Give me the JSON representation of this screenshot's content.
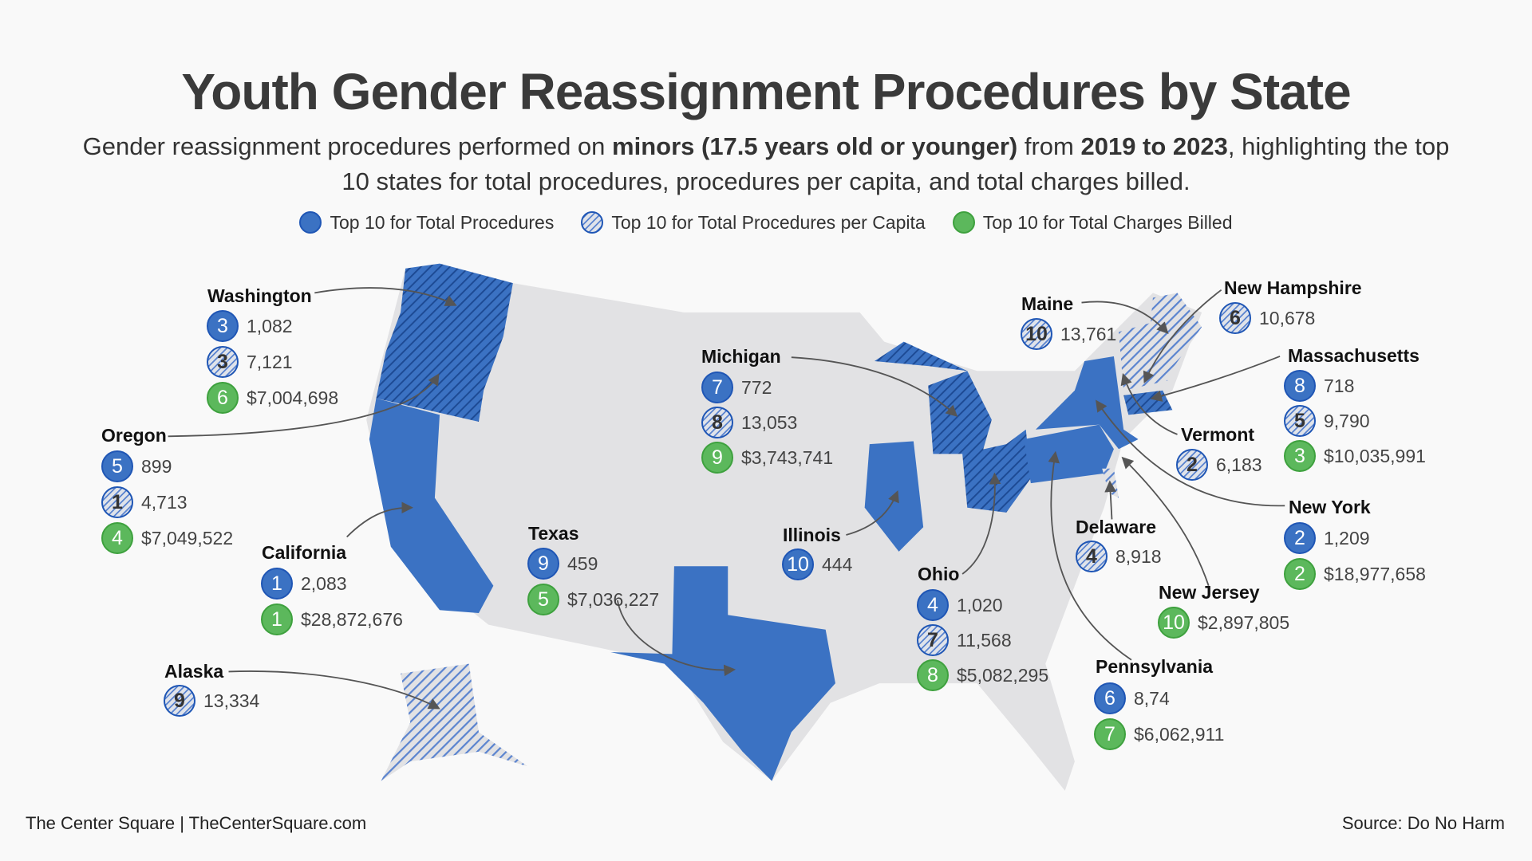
{
  "title": "Youth Gender Reassignment Procedures by State",
  "subtitle": {
    "p1": "Gender reassignment procedures performed on ",
    "b1": "minors (17.5 years old or younger)",
    "p2": " from ",
    "b2": "2019 to 2023",
    "p3": ", highlighting the top 10 states for total procedures, procedures per capita, and total charges billed."
  },
  "legend": [
    {
      "type": "blue",
      "label": "Top 10 for Total Procedures"
    },
    {
      "type": "hatch",
      "label": "Top 10 for Total Procedures per Capita"
    },
    {
      "type": "green",
      "label": "Top 10 for Total Charges Billed"
    }
  ],
  "colors": {
    "procedures": "#3b72c3",
    "per_capita_hatch": "#5b84cf",
    "charges": "#5cb85c",
    "map_base": "#e2e2e4"
  },
  "states": [
    {
      "name": "Washington",
      "rows": [
        {
          "type": "blue",
          "rank": "3",
          "value": "1,082"
        },
        {
          "type": "hatch",
          "rank": "3",
          "value": "7,121"
        },
        {
          "type": "green",
          "rank": "6",
          "value": "$7,004,698"
        }
      ]
    },
    {
      "name": "Oregon",
      "rows": [
        {
          "type": "blue",
          "rank": "5",
          "value": "899"
        },
        {
          "type": "hatch",
          "rank": "1",
          "value": "4,713"
        },
        {
          "type": "green",
          "rank": "4",
          "value": "$7,049,522"
        }
      ]
    },
    {
      "name": "California",
      "rows": [
        {
          "type": "blue",
          "rank": "1",
          "value": "2,083"
        },
        {
          "type": "green",
          "rank": "1",
          "value": "$28,872,676"
        }
      ]
    },
    {
      "name": "Alaska",
      "rows": [
        {
          "type": "hatch",
          "rank": "9",
          "value": "13,334"
        }
      ]
    },
    {
      "name": "Texas",
      "rows": [
        {
          "type": "blue",
          "rank": "9",
          "value": "459"
        },
        {
          "type": "green",
          "rank": "5",
          "value": "$7,036,227"
        }
      ]
    },
    {
      "name": "Michigan",
      "rows": [
        {
          "type": "blue",
          "rank": "7",
          "value": "772"
        },
        {
          "type": "hatch",
          "rank": "8",
          "value": "13,053"
        },
        {
          "type": "green",
          "rank": "9",
          "value": "$3,743,741"
        }
      ]
    },
    {
      "name": "Illinois",
      "rows": [
        {
          "type": "blue",
          "rank": "10",
          "value": "444"
        }
      ]
    },
    {
      "name": "Ohio",
      "rows": [
        {
          "type": "blue",
          "rank": "4",
          "value": "1,020"
        },
        {
          "type": "hatch",
          "rank": "7",
          "value": "11,568"
        },
        {
          "type": "green",
          "rank": "8",
          "value": "$5,082,295"
        }
      ]
    },
    {
      "name": "Maine",
      "rows": [
        {
          "type": "hatch",
          "rank": "10",
          "value": "13,761"
        }
      ]
    },
    {
      "name": "New Hampshire",
      "rows": [
        {
          "type": "hatch",
          "rank": "6",
          "value": "10,678"
        }
      ]
    },
    {
      "name": "Massachusetts",
      "rows": [
        {
          "type": "blue",
          "rank": "8",
          "value": "718"
        },
        {
          "type": "hatch",
          "rank": "5",
          "value": "9,790"
        },
        {
          "type": "green",
          "rank": "3",
          "value": "$10,035,991"
        }
      ]
    },
    {
      "name": "Vermont",
      "rows": [
        {
          "type": "hatch",
          "rank": "2",
          "value": "6,183"
        }
      ]
    },
    {
      "name": "New York",
      "rows": [
        {
          "type": "blue",
          "rank": "2",
          "value": "1,209"
        },
        {
          "type": "green",
          "rank": "2",
          "value": "$18,977,658"
        }
      ]
    },
    {
      "name": "Delaware",
      "rows": [
        {
          "type": "hatch",
          "rank": "4",
          "value": "8,918"
        }
      ]
    },
    {
      "name": "New Jersey",
      "rows": [
        {
          "type": "green",
          "rank": "10",
          "value": "$2,897,805"
        }
      ]
    },
    {
      "name": "Pennsylvania",
      "rows": [
        {
          "type": "blue",
          "rank": "6",
          "value": "8,74"
        },
        {
          "type": "green",
          "rank": "7",
          "value": "$6,062,911"
        }
      ]
    }
  ],
  "footer": {
    "left": "The Center Square | TheCenterSquare.com",
    "right": "Source: Do No Harm"
  }
}
